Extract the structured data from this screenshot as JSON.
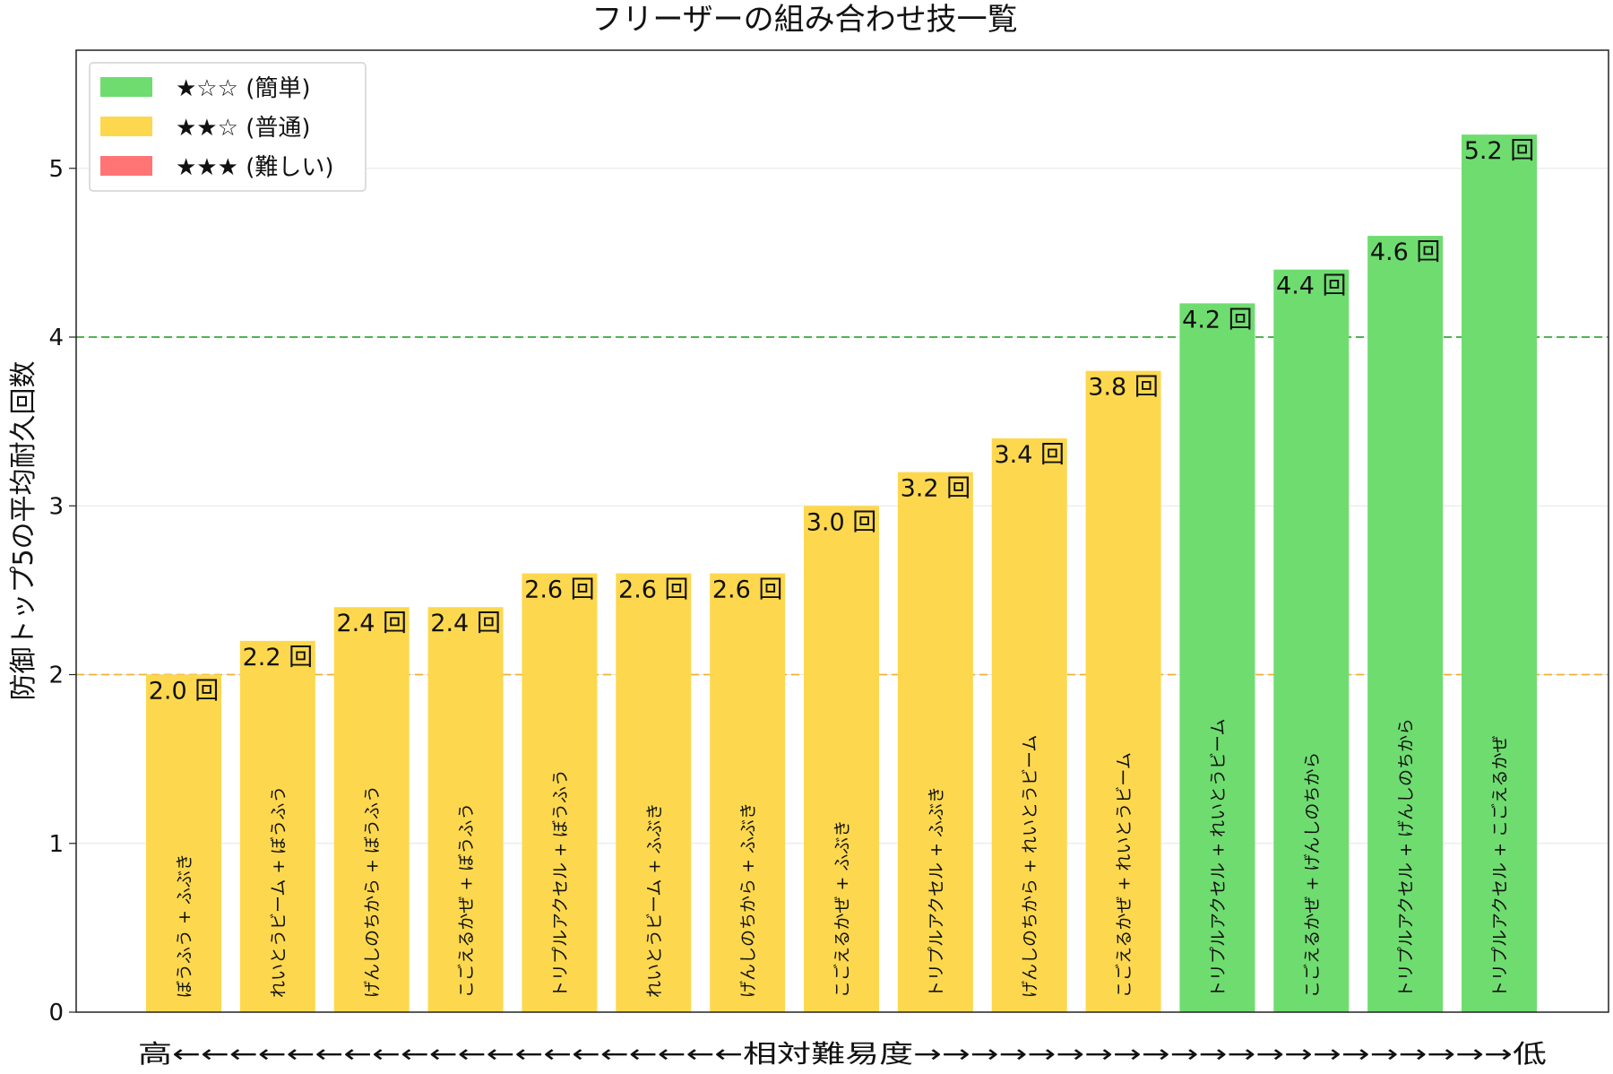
{
  "chart_data": {
    "type": "bar",
    "title": "フリーザーの組み合わせ技一覧",
    "ylabel": "防御トップ5の平均耐久回数",
    "xlabel": "高←←←←←←←←←←←←←←←←←←←←相対難易度→→→→→→→→→→→→→→→→→→→→→低",
    "ylim": [
      0,
      5.7
    ],
    "yticks": [
      0,
      1,
      2,
      3,
      4,
      5
    ],
    "grid": "horizontal",
    "legend_position": "top-left",
    "value_unit": "回",
    "reference_lines": [
      {
        "y": 2.0,
        "color": "#f0b232",
        "style": "dashed"
      },
      {
        "y": 4.0,
        "color": "#3aa83a",
        "style": "dashed"
      }
    ],
    "legend": [
      {
        "label": "★☆☆ (簡単)",
        "color": "#6fdc70"
      },
      {
        "label": "★★☆ (普通)",
        "color": "#fdd84e"
      },
      {
        "label": "★★★ (難しい)",
        "color": "#ff7474"
      }
    ],
    "categories": [
      "ぼうふう + ふぶき",
      "れいとうビーム + ぼうふう",
      "げんしのちから + ぼうふう",
      "こごえるかぜ + ぼうふう",
      "トリプルアクセル + ぼうふう",
      "れいとうビーム + ふぶき",
      "げんしのちから + ふぶき",
      "こごえるかぜ + ふぶき",
      "トリプルアクセル + ふぶき",
      "げんしのちから + れいとうビーム",
      "こごえるかぜ + れいとうビーム",
      "トリプルアクセル + れいとうビーム",
      "こごえるかぜ + げんしのちから",
      "トリプルアクセル + げんしのちから",
      "トリプルアクセル + こごえるかぜ"
    ],
    "values": [
      2.0,
      2.2,
      2.4,
      2.4,
      2.6,
      2.6,
      2.6,
      3.0,
      3.2,
      3.4,
      3.8,
      4.2,
      4.4,
      4.6,
      5.2
    ],
    "value_labels": [
      "2.0 回",
      "2.2 回",
      "2.4 回",
      "2.4 回",
      "2.6 回",
      "2.6 回",
      "2.6 回",
      "3.0 回",
      "3.2 回",
      "3.4 回",
      "3.8 回",
      "4.2 回",
      "4.4 回",
      "4.6 回",
      "5.2 回"
    ],
    "difficulty": [
      "普通",
      "普通",
      "普通",
      "普通",
      "普通",
      "普通",
      "普通",
      "普通",
      "普通",
      "普通",
      "普通",
      "簡単",
      "簡単",
      "簡単",
      "簡単"
    ],
    "colors": {
      "簡単": "#6fdc70",
      "普通": "#fdd84e",
      "難しい": "#ff7474"
    }
  }
}
